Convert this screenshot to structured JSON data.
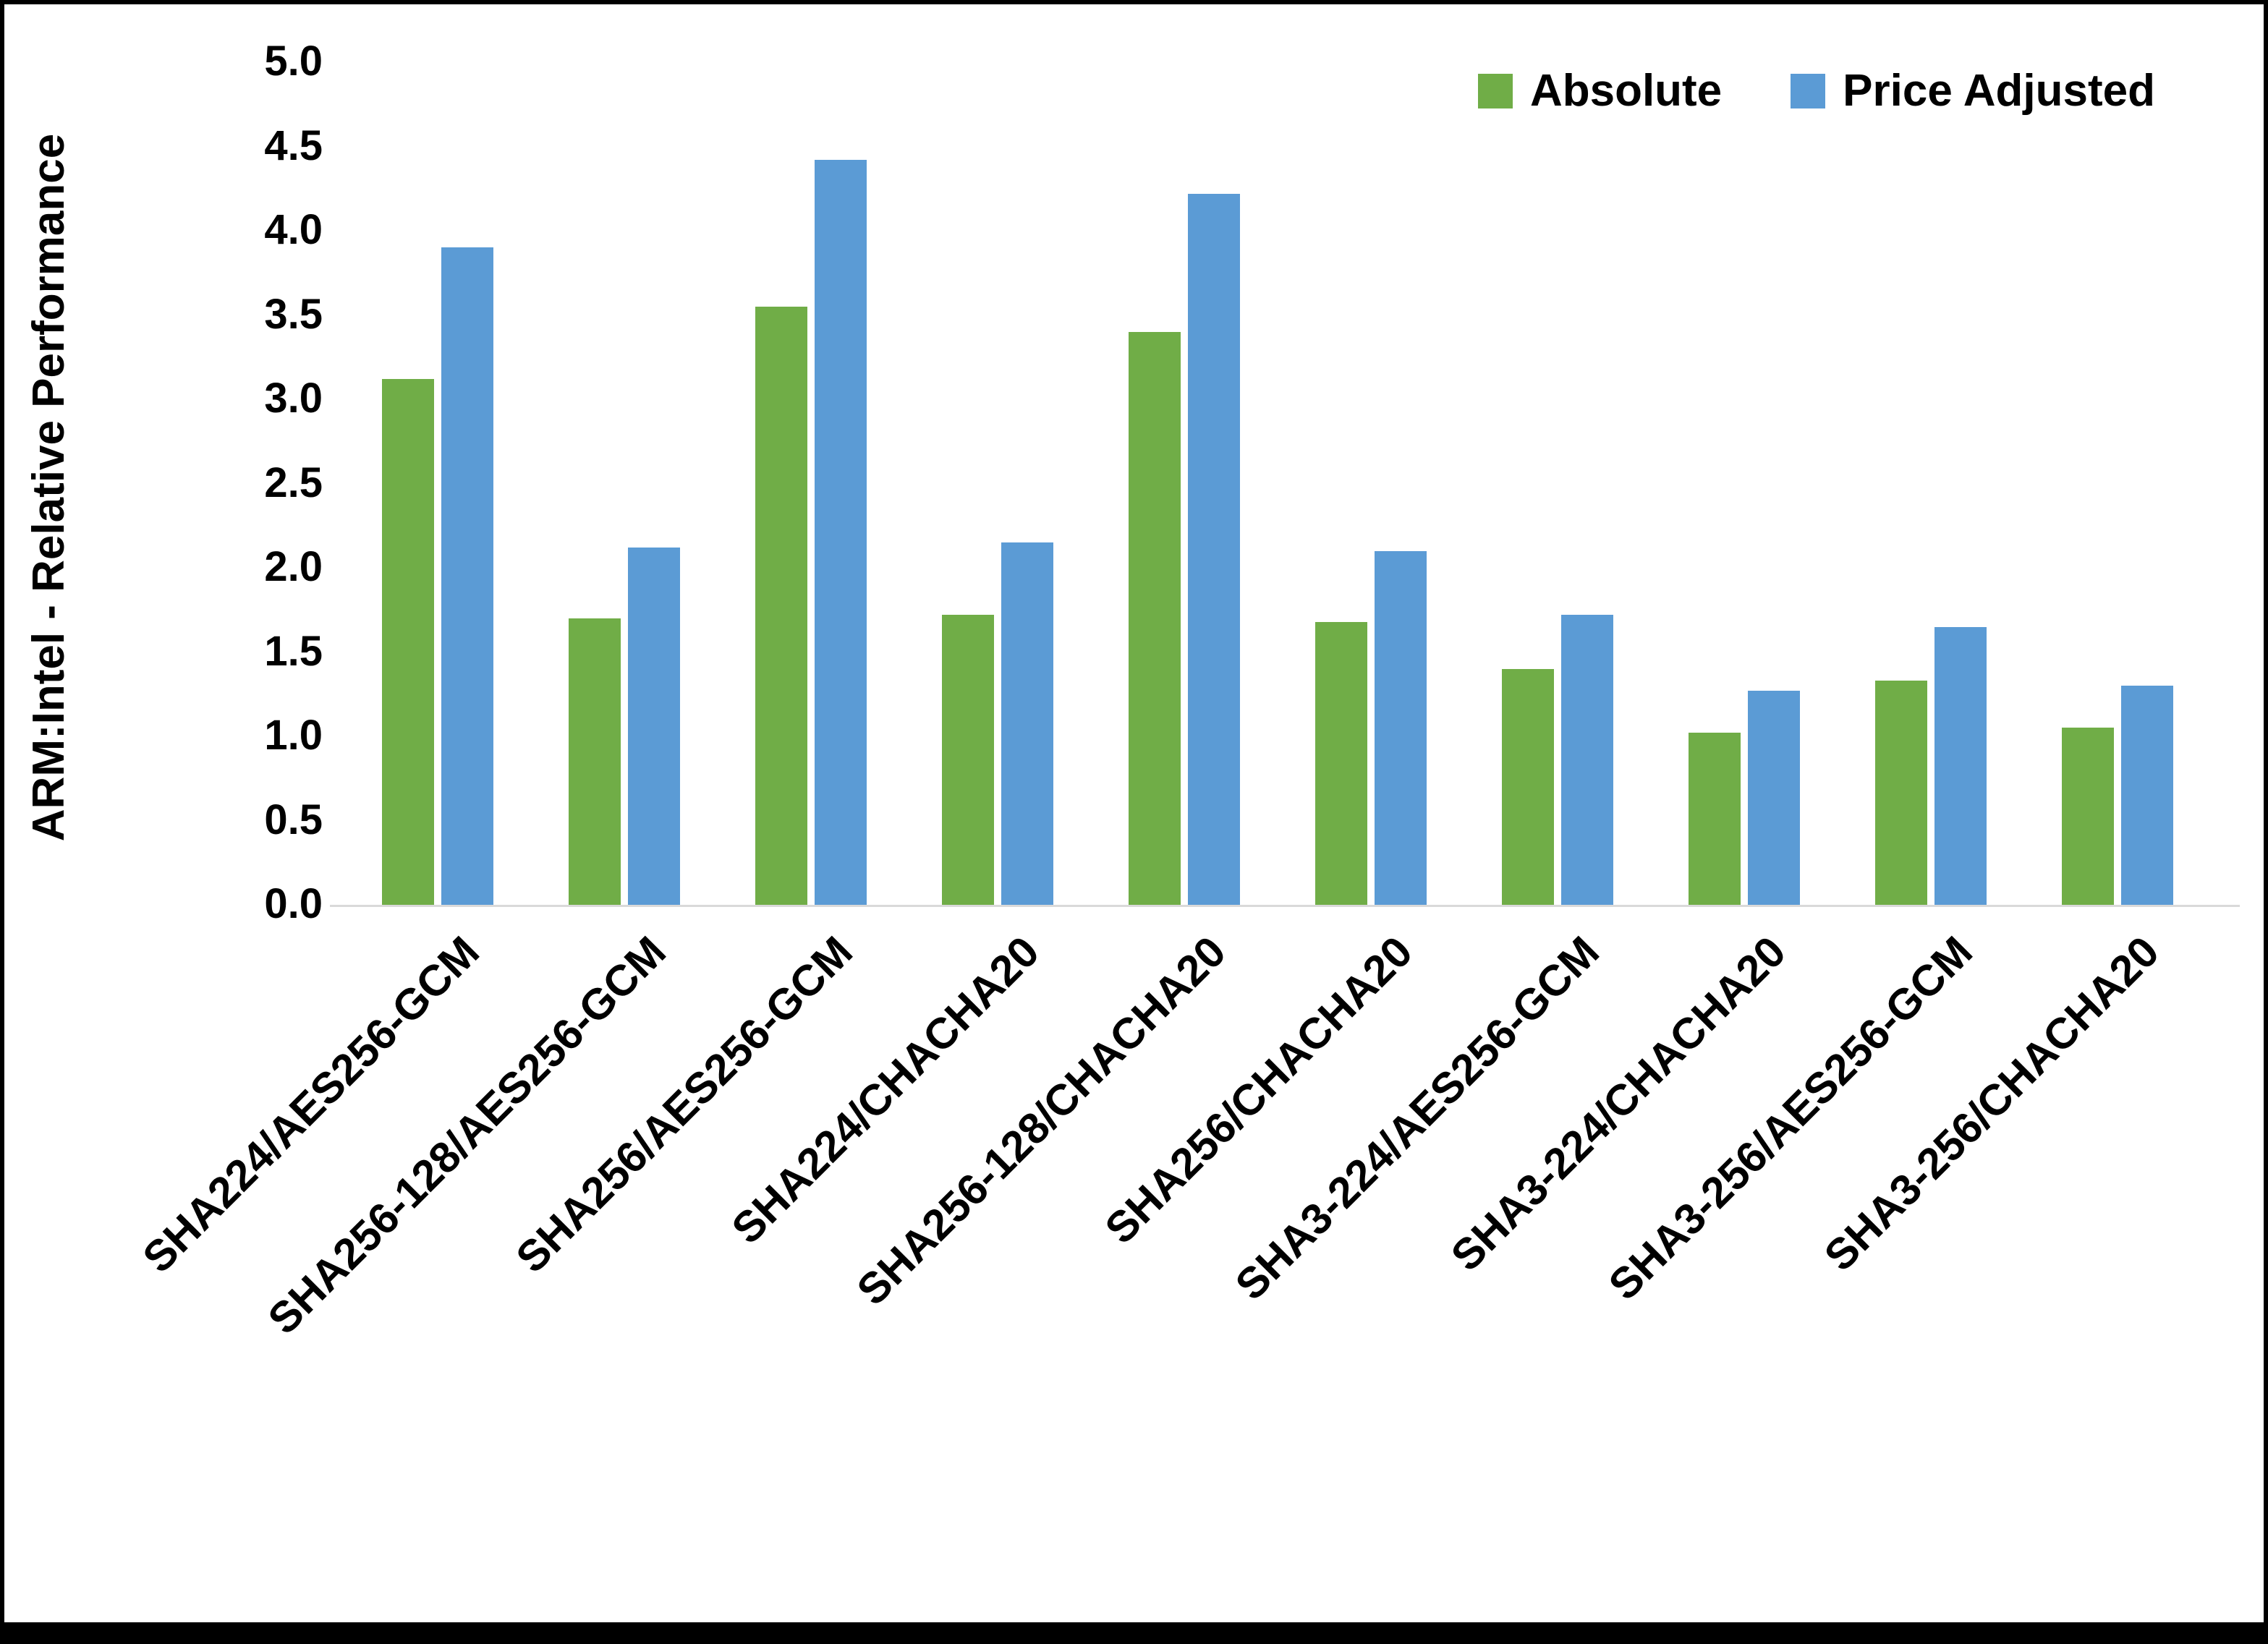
{
  "chart_data": {
    "type": "bar",
    "title": "",
    "xlabel": "",
    "ylabel": "ARM:Intel - Relative Performance",
    "ylim": [
      0,
      5
    ],
    "ytick_step": 0.5,
    "ytick_labels": [
      "0.0",
      "0.5",
      "1.0",
      "1.5",
      "2.0",
      "2.5",
      "3.0",
      "3.5",
      "4.0",
      "4.5",
      "5.0"
    ],
    "grid": false,
    "legend_position": "top-right",
    "categories": [
      "SHA224/AES256-GCM",
      "SHA256-128/AES256-GCM",
      "SHA256/AES256-GCM",
      "SHA224/CHACHA20",
      "SHA256-128/CHACHA20",
      "SHA256/CHACHA20",
      "SHA3-224/AES256-GCM",
      "SHA3-224/CHACHA20",
      "SHA3-256/AES256-GCM",
      "SHA3-256/CHACHA20"
    ],
    "series": [
      {
        "name": "Absolute",
        "color": "#70AD47",
        "values": [
          3.12,
          1.7,
          3.55,
          1.72,
          3.4,
          1.68,
          1.4,
          1.02,
          1.33,
          1.05
        ]
      },
      {
        "name": "Price Adjusted",
        "color": "#5B9BD5",
        "values": [
          3.9,
          2.12,
          4.42,
          2.15,
          4.22,
          2.1,
          1.72,
          1.27,
          1.65,
          1.3
        ]
      }
    ]
  },
  "colors": {
    "background": "#ffffff",
    "border": "#000000",
    "axis_line": "#d9d9d9",
    "text": "#000000"
  }
}
